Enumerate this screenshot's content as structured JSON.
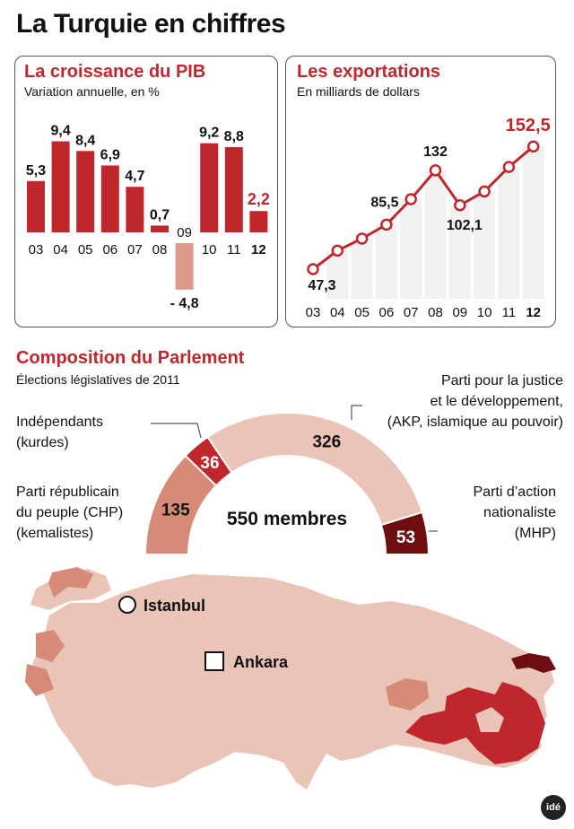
{
  "page": {
    "title": "La Turquie en chiffres"
  },
  "colors": {
    "accent": "#c0272d",
    "negative": "#dd9a8c",
    "akp": "#ebc4b8",
    "chp": "#d88a78",
    "ind": "#c0272d",
    "mhp": "#6e0e10"
  },
  "chart_data": [
    {
      "type": "bar",
      "title": "La croissance du PIB",
      "subtitle": "Variation annuelle, en %",
      "categories": [
        "03",
        "04",
        "05",
        "06",
        "07",
        "08",
        "09",
        "10",
        "11",
        "12"
      ],
      "values": [
        5.3,
        9.4,
        8.4,
        6.9,
        4.7,
        0.7,
        -4.8,
        9.2,
        8.8,
        2.2
      ],
      "value_labels": [
        "5,3",
        "9,4",
        "8,4",
        "6,9",
        "4,7",
        "0,7",
        "- 4,8",
        "9,2",
        "8,8",
        "2,2"
      ],
      "highlight": "12"
    },
    {
      "type": "line",
      "title": "Les exportations",
      "subtitle": "En milliards de dollars",
      "x": [
        "03",
        "04",
        "05",
        "06",
        "07",
        "08",
        "09",
        "10",
        "11",
        "12"
      ],
      "values": [
        47.3,
        63.2,
        73.5,
        85.5,
        107.3,
        132,
        102.1,
        113.9,
        134.9,
        152.5
      ],
      "labels": [
        {
          "x": "03",
          "text": "47,3"
        },
        {
          "x": "06",
          "text": "85,5"
        },
        {
          "x": "08",
          "text": "132"
        },
        {
          "x": "09",
          "text": "102,1"
        },
        {
          "x": "12",
          "text": "152,5"
        }
      ],
      "highlight": "12"
    },
    {
      "type": "pie",
      "title": "Composition du Parlement",
      "subtitle": "Élections législatives de 2011",
      "center_label": "550 membres",
      "slices": [
        {
          "name": "CHP",
          "value": 135,
          "label": "135"
        },
        {
          "name": "Indépendants",
          "value": 36,
          "label": "36"
        },
        {
          "name": "AKP",
          "value": 326,
          "label": "326"
        },
        {
          "name": "MHP",
          "value": 53,
          "label": "53"
        }
      ]
    }
  ],
  "parliament": {
    "akp_label": [
      "Parti pour la justice",
      "et le développement,",
      "(AKP, islamique au pouvoir)"
    ],
    "ind_label": [
      "Indépendants",
      "(kurdes)"
    ],
    "chp_label": [
      "Parti républicain",
      "du peuple (CHP)",
      "(kemalistes)"
    ],
    "mhp_label": [
      "Parti d’action",
      "nationaliste",
      "(MHP)"
    ]
  },
  "map": {
    "city1": "Istanbul",
    "city2": "Ankara"
  },
  "watermark": "idé"
}
